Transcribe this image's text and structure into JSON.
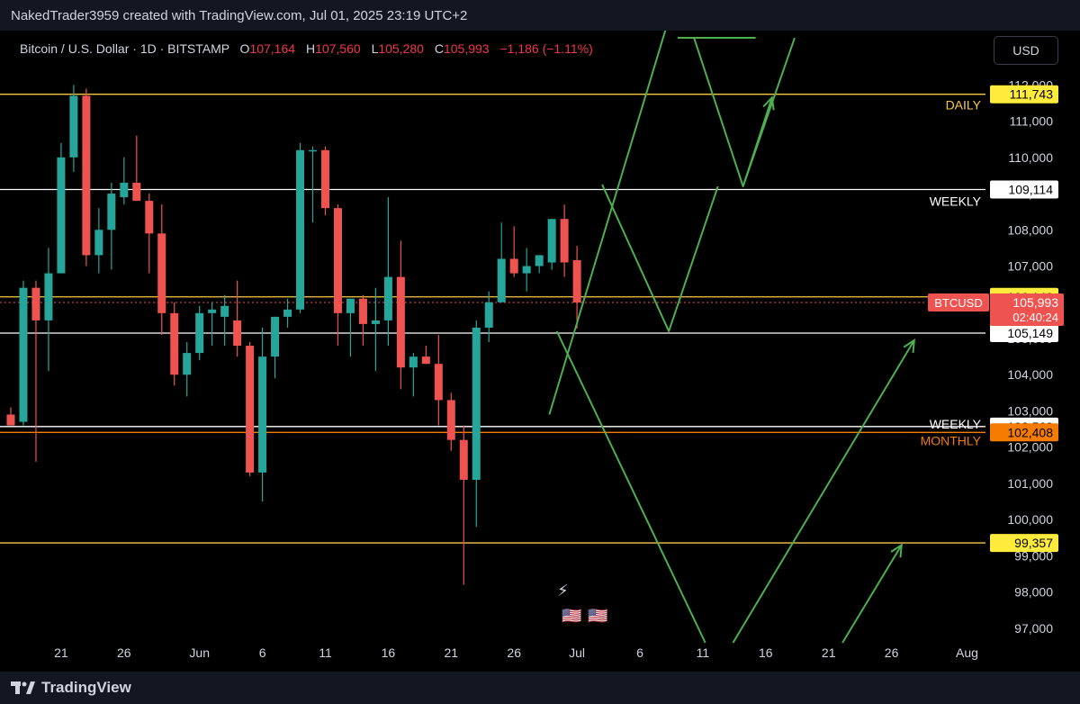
{
  "header": {
    "credit": "NakedTrader3959 created with TradingView.com, Jul 01, 2025 23:19 UTC+2"
  },
  "symbol": {
    "name": "Bitcoin / U.S. Dollar · 1D · BITSTAMP",
    "o_label": "O",
    "o_value": "107,164",
    "h_label": "H",
    "h_value": "107,560",
    "l_label": "L",
    "l_value": "105,280",
    "c_label": "C",
    "c_value": "105,993",
    "change": "−1,186 (−1.11%)"
  },
  "currency_button": "USD",
  "footer": {
    "brand": "TradingView"
  },
  "colors": {
    "up": "#26a69a",
    "down": "#ef5350",
    "projection": "#4caf50",
    "yellow_line": "#f7c948",
    "white_line": "#ffffff",
    "orange_line": "#f57c00"
  },
  "chart_data": {
    "type": "candlestick",
    "symbol": "BTCUSD",
    "timeframe": "1D",
    "ylim": [
      96600,
      113500
    ],
    "y_ticks": [
      97000,
      98000,
      99000,
      100000,
      101000,
      102000,
      103000,
      104000,
      105000,
      106000,
      107000,
      108000,
      109000,
      110000,
      111000,
      112000
    ],
    "y_tick_labels": [
      "97,000",
      "98,000",
      "99,000",
      "100,000",
      "101,000",
      "102,000",
      "103,000",
      "104,000",
      "105,000",
      "106,000",
      "107,000",
      "108,000",
      "109,000",
      "110,000",
      "111,000",
      "112,000"
    ],
    "x_ticks": [
      {
        "label": "21",
        "day": 4
      },
      {
        "label": "26",
        "day": 9
      },
      {
        "label": "Jun",
        "day": 15
      },
      {
        "label": "6",
        "day": 20
      },
      {
        "label": "11",
        "day": 25
      },
      {
        "label": "16",
        "day": 30
      },
      {
        "label": "21",
        "day": 35
      },
      {
        "label": "26",
        "day": 40
      },
      {
        "label": "Jul",
        "day": 45
      },
      {
        "label": "6",
        "day": 50
      },
      {
        "label": "11",
        "day": 55
      },
      {
        "label": "16",
        "day": 60
      },
      {
        "label": "21",
        "day": 65
      },
      {
        "label": "26",
        "day": 70
      },
      {
        "label": "Aug",
        "day": 76
      }
    ],
    "candles": [
      {
        "o": 102900,
        "h": 103100,
        "l": 102600,
        "c": 102600
      },
      {
        "o": 102700,
        "h": 106600,
        "l": 102600,
        "c": 106400
      },
      {
        "o": 106400,
        "h": 106600,
        "l": 101600,
        "c": 105500
      },
      {
        "o": 105500,
        "h": 107500,
        "l": 104100,
        "c": 106800
      },
      {
        "o": 106800,
        "h": 110400,
        "l": 106800,
        "c": 110000
      },
      {
        "o": 110000,
        "h": 112000,
        "l": 109600,
        "c": 111700
      },
      {
        "o": 111700,
        "h": 111900,
        "l": 107000,
        "c": 107300
      },
      {
        "o": 107300,
        "h": 108600,
        "l": 106800,
        "c": 108000
      },
      {
        "o": 108000,
        "h": 109300,
        "l": 106900,
        "c": 109000
      },
      {
        "o": 108900,
        "h": 110000,
        "l": 108700,
        "c": 109300
      },
      {
        "o": 109300,
        "h": 110600,
        "l": 108800,
        "c": 108800
      },
      {
        "o": 108800,
        "h": 109000,
        "l": 106800,
        "c": 107900
      },
      {
        "o": 107900,
        "h": 108700,
        "l": 105100,
        "c": 105700
      },
      {
        "o": 105700,
        "h": 106000,
        "l": 103700,
        "c": 104000
      },
      {
        "o": 104000,
        "h": 104900,
        "l": 103400,
        "c": 104600
      },
      {
        "o": 104600,
        "h": 105900,
        "l": 104400,
        "c": 105700
      },
      {
        "o": 105700,
        "h": 106000,
        "l": 104800,
        "c": 105800
      },
      {
        "o": 105600,
        "h": 106200,
        "l": 104800,
        "c": 105900
      },
      {
        "o": 105500,
        "h": 106600,
        "l": 104500,
        "c": 104800
      },
      {
        "o": 104800,
        "h": 104900,
        "l": 101200,
        "c": 101300
      },
      {
        "o": 101300,
        "h": 105300,
        "l": 100500,
        "c": 104500
      },
      {
        "o": 104500,
        "h": 105600,
        "l": 103900,
        "c": 105600
      },
      {
        "o": 105600,
        "h": 106100,
        "l": 105300,
        "c": 105800
      },
      {
        "o": 105800,
        "h": 110400,
        "l": 105700,
        "c": 110200
      },
      {
        "o": 110200,
        "h": 110300,
        "l": 108200,
        "c": 110200
      },
      {
        "o": 110200,
        "h": 110300,
        "l": 108400,
        "c": 108600
      },
      {
        "o": 108600,
        "h": 108700,
        "l": 104800,
        "c": 105700
      },
      {
        "o": 105700,
        "h": 106100,
        "l": 104500,
        "c": 106100
      },
      {
        "o": 106100,
        "h": 106200,
        "l": 104800,
        "c": 105400
      },
      {
        "o": 105400,
        "h": 106400,
        "l": 104100,
        "c": 105500
      },
      {
        "o": 105500,
        "h": 108900,
        "l": 104800,
        "c": 106700
      },
      {
        "o": 106700,
        "h": 107700,
        "l": 103600,
        "c": 104200
      },
      {
        "o": 104200,
        "h": 104600,
        "l": 103400,
        "c": 104500
      },
      {
        "o": 104500,
        "h": 104800,
        "l": 104300,
        "c": 104300
      },
      {
        "o": 104300,
        "h": 105100,
        "l": 102600,
        "c": 103300
      },
      {
        "o": 103300,
        "h": 103500,
        "l": 101900,
        "c": 102200
      },
      {
        "o": 102200,
        "h": 102600,
        "l": 98200,
        "c": 101100
      },
      {
        "o": 101100,
        "h": 105500,
        "l": 99800,
        "c": 105300
      },
      {
        "o": 105300,
        "h": 106300,
        "l": 104900,
        "c": 106000
      },
      {
        "o": 106000,
        "h": 108200,
        "l": 106000,
        "c": 107200
      },
      {
        "o": 107200,
        "h": 108100,
        "l": 106700,
        "c": 106800
      },
      {
        "o": 106800,
        "h": 107500,
        "l": 106300,
        "c": 107000
      },
      {
        "o": 107000,
        "h": 107300,
        "l": 106800,
        "c": 107300
      },
      {
        "o": 107100,
        "h": 108300,
        "l": 106900,
        "c": 108300
      },
      {
        "o": 108300,
        "h": 108700,
        "l": 106700,
        "c": 107100
      },
      {
        "o": 107164,
        "h": 107560,
        "l": 105280,
        "c": 105993
      }
    ],
    "levels": [
      {
        "value": 111743,
        "label": "111,743",
        "tag": "DAILY",
        "color": "yellow"
      },
      {
        "value": 109114,
        "label": "109,114",
        "tag": "WEEKLY",
        "color": "white"
      },
      {
        "value": 106149,
        "label": "106,149",
        "tag": "",
        "color": "yellow"
      },
      {
        "value": 105149,
        "label": "105,149",
        "tag": "",
        "color": "white"
      },
      {
        "value": 102569,
        "label": "102,569",
        "tag": "WEEKLY",
        "color": "white"
      },
      {
        "value": 102408,
        "label": "102,408",
        "tag": "MONTHLY",
        "color": "orange"
      },
      {
        "value": 99357,
        "label": "99,357",
        "tag": "",
        "color": "yellow"
      }
    ],
    "last_price": {
      "symbol": "BTCUSD",
      "value": 105993,
      "label": "105,993",
      "countdown": "02:40:24"
    },
    "projections": [
      {
        "points": [
          [
            42.8,
            102900
          ],
          [
            52.8,
            114400
          ]
        ]
      },
      {
        "points": [
          [
            47,
            109250
          ],
          [
            52.3,
            105200
          ],
          [
            56.2,
            109200
          ]
        ],
        "arrow": false
      },
      {
        "points": [
          [
            54.3,
            113300
          ],
          [
            58.2,
            109200
          ],
          [
            60.5,
            111650
          ]
        ],
        "arrow": true
      },
      {
        "points": [
          [
            53.0,
            113300
          ],
          [
            59.2,
            113300
          ]
        ],
        "arrow": false
      },
      {
        "points": [
          [
            58.3,
            109300
          ],
          [
            62.3,
            113300
          ]
        ],
        "arrow": false
      },
      {
        "points": [
          [
            43.4,
            105200
          ],
          [
            55.2,
            96600
          ]
        ],
        "arrow": false
      },
      {
        "points": [
          [
            57.4,
            96600
          ],
          [
            71.8,
            104950
          ]
        ],
        "arrow": true
      },
      {
        "points": [
          [
            66.1,
            96600
          ],
          [
            70.8,
            99300
          ]
        ],
        "arrow": true
      }
    ]
  }
}
